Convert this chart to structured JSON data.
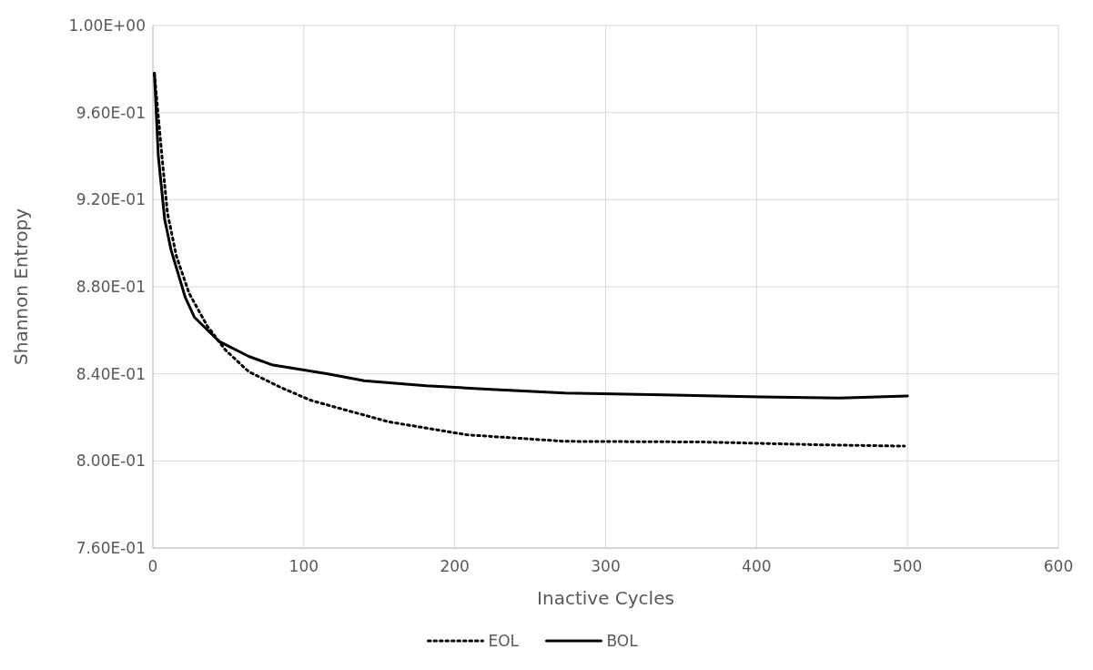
{
  "chart_data": {
    "type": "line",
    "xlabel": "Inactive Cycles",
    "ylabel": "Shannon Entropy",
    "xlim": [
      0,
      600
    ],
    "xticks": [
      0,
      100,
      200,
      300,
      400,
      500,
      600
    ],
    "ylim": [
      0.76,
      1
    ],
    "yticks": [
      {
        "value": 0.76,
        "label": "7.60E-01"
      },
      {
        "value": 0.8,
        "label": "8.00E-01"
      },
      {
        "value": 0.84,
        "label": "8.40E-01"
      },
      {
        "value": 0.88,
        "label": "8.80E-01"
      },
      {
        "value": 0.92,
        "label": "9.20E-01"
      },
      {
        "value": 0.96,
        "label": "9.60E-01"
      },
      {
        "value": 1,
        "label": "1.00E+00"
      }
    ],
    "grid": true,
    "legend": "bottom",
    "marker": "none",
    "series": [
      {
        "name": "EOL",
        "color": "#000000",
        "line_style": "dotted",
        "x": [
          1,
          6,
          9.6,
          15.6,
          24,
          36,
          48,
          63.5,
          84,
          104,
          114,
          156,
          208,
          273,
          364,
          442,
          498
        ],
        "values": [
          0.978,
          0.94,
          0.914,
          0.894,
          0.877,
          0.862,
          0.851,
          0.841,
          0.834,
          0.828,
          0.826,
          0.818,
          0.812,
          0.809,
          0.8087,
          0.8074,
          0.8068
        ]
      },
      {
        "name": "BOL",
        "color": "#000000",
        "line_style": "solid",
        "x": [
          1,
          3.6,
          7.8,
          12,
          21.5,
          27.5,
          43.7,
          63.5,
          79.6,
          104,
          116,
          140,
          181,
          221,
          273,
          338,
          403,
          455,
          500
        ],
        "values": [
          0.978,
          0.94,
          0.911,
          0.897,
          0.875,
          0.866,
          0.855,
          0.848,
          0.844,
          0.8413,
          0.84,
          0.8368,
          0.8345,
          0.833,
          0.8312,
          0.8303,
          0.8294,
          0.8289,
          0.8298
        ]
      }
    ]
  }
}
